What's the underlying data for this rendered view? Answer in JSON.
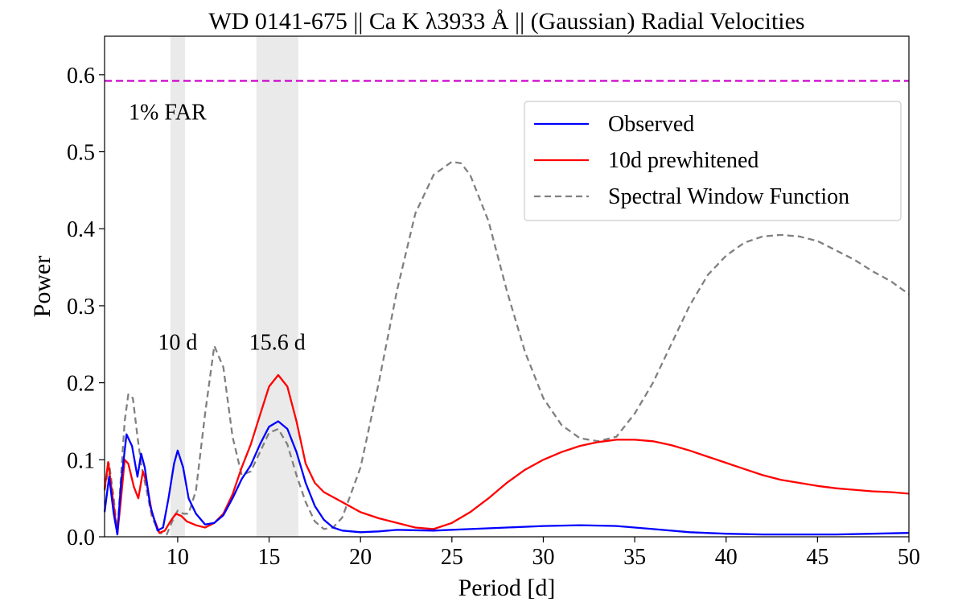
{
  "chart_data": {
    "type": "line",
    "title": "WD 0141-675 || Ca K  λ3933 Å || (Gaussian) Radial Velocities",
    "xlabel": "Period [d]",
    "ylabel": "Power",
    "xlim": [
      6,
      50
    ],
    "ylim": [
      0.0,
      0.65
    ],
    "xticks": [
      10,
      15,
      20,
      25,
      30,
      35,
      40,
      45,
      50
    ],
    "xtick_labels": [
      "10",
      "15",
      "20",
      "25",
      "30",
      "35",
      "40",
      "45",
      "50"
    ],
    "yticks": [
      0.0,
      0.1,
      0.2,
      0.3,
      0.4,
      0.5,
      0.6
    ],
    "ytick_labels": [
      "0.0",
      "0.1",
      "0.2",
      "0.3",
      "0.4",
      "0.5",
      "0.6"
    ],
    "grid": false,
    "legend_position": "top-right",
    "threshold": {
      "value": 0.592,
      "label": "1% FAR",
      "color": "#cc00cc",
      "style": "dashed"
    },
    "shaded_regions": [
      {
        "x0": 9.6,
        "x1": 10.4,
        "label": "10 d",
        "color": "#d9d9d9"
      },
      {
        "x0": 14.3,
        "x1": 16.6,
        "label": "15.6 d",
        "color": "#d9d9d9"
      }
    ],
    "series": [
      {
        "name": "Observed",
        "color": "#0000ff",
        "style": "solid",
        "points": [
          [
            6.0,
            0.032
          ],
          [
            6.25,
            0.078
          ],
          [
            6.5,
            0.03
          ],
          [
            6.7,
            0.003
          ],
          [
            6.9,
            0.07
          ],
          [
            7.2,
            0.133
          ],
          [
            7.5,
            0.118
          ],
          [
            7.8,
            0.078
          ],
          [
            8.0,
            0.108
          ],
          [
            8.2,
            0.09
          ],
          [
            8.5,
            0.04
          ],
          [
            8.9,
            0.008
          ],
          [
            9.2,
            0.012
          ],
          [
            9.5,
            0.05
          ],
          [
            9.8,
            0.095
          ],
          [
            10.0,
            0.112
          ],
          [
            10.3,
            0.09
          ],
          [
            10.6,
            0.05
          ],
          [
            11.0,
            0.03
          ],
          [
            11.5,
            0.016
          ],
          [
            12.0,
            0.018
          ],
          [
            12.5,
            0.028
          ],
          [
            13.0,
            0.05
          ],
          [
            13.5,
            0.075
          ],
          [
            14.0,
            0.093
          ],
          [
            14.5,
            0.12
          ],
          [
            15.0,
            0.143
          ],
          [
            15.5,
            0.15
          ],
          [
            16.0,
            0.14
          ],
          [
            16.5,
            0.11
          ],
          [
            17.0,
            0.07
          ],
          [
            17.5,
            0.04
          ],
          [
            18.0,
            0.022
          ],
          [
            18.5,
            0.012
          ],
          [
            19.0,
            0.008
          ],
          [
            20.0,
            0.006
          ],
          [
            21.0,
            0.007
          ],
          [
            22.0,
            0.009
          ],
          [
            24.0,
            0.008
          ],
          [
            26.0,
            0.01
          ],
          [
            28.0,
            0.012
          ],
          [
            30.0,
            0.014
          ],
          [
            32.0,
            0.015
          ],
          [
            34.0,
            0.014
          ],
          [
            36.0,
            0.01
          ],
          [
            38.0,
            0.006
          ],
          [
            40.0,
            0.004
          ],
          [
            42.0,
            0.003
          ],
          [
            44.0,
            0.003
          ],
          [
            46.0,
            0.003
          ],
          [
            48.0,
            0.004
          ],
          [
            50.0,
            0.005
          ]
        ]
      },
      {
        "name": "10d prewhitened",
        "color": "#ff0000",
        "style": "solid",
        "points": [
          [
            6.0,
            0.062
          ],
          [
            6.2,
            0.097
          ],
          [
            6.45,
            0.05
          ],
          [
            6.7,
            0.003
          ],
          [
            6.9,
            0.05
          ],
          [
            7.1,
            0.1
          ],
          [
            7.3,
            0.095
          ],
          [
            7.6,
            0.065
          ],
          [
            7.85,
            0.05
          ],
          [
            8.1,
            0.085
          ],
          [
            8.3,
            0.07
          ],
          [
            8.6,
            0.03
          ],
          [
            9.0,
            0.005
          ],
          [
            9.3,
            0.008
          ],
          [
            9.6,
            0.02
          ],
          [
            9.9,
            0.03
          ],
          [
            10.2,
            0.027
          ],
          [
            10.5,
            0.02
          ],
          [
            11.0,
            0.015
          ],
          [
            11.5,
            0.012
          ],
          [
            12.0,
            0.018
          ],
          [
            12.5,
            0.03
          ],
          [
            13.0,
            0.055
          ],
          [
            13.5,
            0.09
          ],
          [
            14.0,
            0.12
          ],
          [
            14.5,
            0.158
          ],
          [
            15.0,
            0.195
          ],
          [
            15.5,
            0.21
          ],
          [
            16.0,
            0.195
          ],
          [
            16.5,
            0.15
          ],
          [
            17.0,
            0.095
          ],
          [
            17.5,
            0.07
          ],
          [
            18.0,
            0.058
          ],
          [
            19.0,
            0.045
          ],
          [
            20.0,
            0.032
          ],
          [
            21.0,
            0.024
          ],
          [
            22.0,
            0.018
          ],
          [
            23.0,
            0.012
          ],
          [
            24.0,
            0.01
          ],
          [
            25.0,
            0.018
          ],
          [
            26.0,
            0.032
          ],
          [
            27.0,
            0.05
          ],
          [
            28.0,
            0.07
          ],
          [
            29.0,
            0.087
          ],
          [
            30.0,
            0.1
          ],
          [
            31.0,
            0.11
          ],
          [
            32.0,
            0.118
          ],
          [
            33.0,
            0.123
          ],
          [
            34.0,
            0.126
          ],
          [
            35.0,
            0.126
          ],
          [
            36.0,
            0.124
          ],
          [
            37.0,
            0.119
          ],
          [
            38.0,
            0.112
          ],
          [
            39.0,
            0.104
          ],
          [
            40.0,
            0.096
          ],
          [
            41.0,
            0.088
          ],
          [
            42.0,
            0.08
          ],
          [
            43.0,
            0.074
          ],
          [
            44.0,
            0.07
          ],
          [
            45.0,
            0.066
          ],
          [
            46.0,
            0.063
          ],
          [
            47.0,
            0.061
          ],
          [
            48.0,
            0.059
          ],
          [
            49.0,
            0.058
          ],
          [
            50.0,
            0.056
          ]
        ]
      },
      {
        "name": "Spectral Window Function",
        "color": "#808080",
        "style": "dashed",
        "points": [
          [
            6.0,
            0.06
          ],
          [
            6.25,
            0.095
          ],
          [
            6.5,
            0.05
          ],
          [
            6.7,
            0.005
          ],
          [
            6.9,
            0.08
          ],
          [
            7.1,
            0.15
          ],
          [
            7.3,
            0.185
          ],
          [
            7.55,
            0.18
          ],
          [
            7.8,
            0.13
          ],
          [
            8.0,
            0.095
          ],
          [
            8.3,
            0.06
          ],
          [
            8.6,
            0.025
          ],
          [
            9.0,
            0.005
          ],
          [
            9.4,
            0.003
          ],
          [
            9.7,
            0.02
          ],
          [
            10.0,
            0.034
          ],
          [
            10.3,
            0.03
          ],
          [
            10.6,
            0.03
          ],
          [
            11.0,
            0.06
          ],
          [
            11.5,
            0.16
          ],
          [
            12.0,
            0.248
          ],
          [
            12.5,
            0.22
          ],
          [
            13.0,
            0.13
          ],
          [
            13.5,
            0.08
          ],
          [
            14.0,
            0.085
          ],
          [
            14.5,
            0.11
          ],
          [
            15.0,
            0.135
          ],
          [
            15.5,
            0.14
          ],
          [
            16.0,
            0.12
          ],
          [
            16.5,
            0.08
          ],
          [
            17.0,
            0.045
          ],
          [
            17.5,
            0.02
          ],
          [
            18.0,
            0.01
          ],
          [
            18.5,
            0.012
          ],
          [
            19.0,
            0.025
          ],
          [
            20.0,
            0.09
          ],
          [
            21.0,
            0.2
          ],
          [
            22.0,
            0.32
          ],
          [
            23.0,
            0.42
          ],
          [
            24.0,
            0.47
          ],
          [
            25.0,
            0.487
          ],
          [
            25.5,
            0.485
          ],
          [
            26.0,
            0.47
          ],
          [
            27.0,
            0.41
          ],
          [
            28.0,
            0.32
          ],
          [
            29.0,
            0.24
          ],
          [
            30.0,
            0.18
          ],
          [
            31.0,
            0.145
          ],
          [
            32.0,
            0.128
          ],
          [
            33.0,
            0.124
          ],
          [
            34.0,
            0.13
          ],
          [
            35.0,
            0.16
          ],
          [
            36.0,
            0.2
          ],
          [
            37.0,
            0.25
          ],
          [
            38.0,
            0.3
          ],
          [
            39.0,
            0.34
          ],
          [
            40.0,
            0.365
          ],
          [
            41.0,
            0.382
          ],
          [
            42.0,
            0.39
          ],
          [
            43.0,
            0.392
          ],
          [
            44.0,
            0.39
          ],
          [
            45.0,
            0.384
          ],
          [
            46.0,
            0.372
          ],
          [
            47.0,
            0.36
          ],
          [
            48.0,
            0.345
          ],
          [
            49.0,
            0.332
          ],
          [
            50.0,
            0.315
          ]
        ]
      }
    ]
  }
}
